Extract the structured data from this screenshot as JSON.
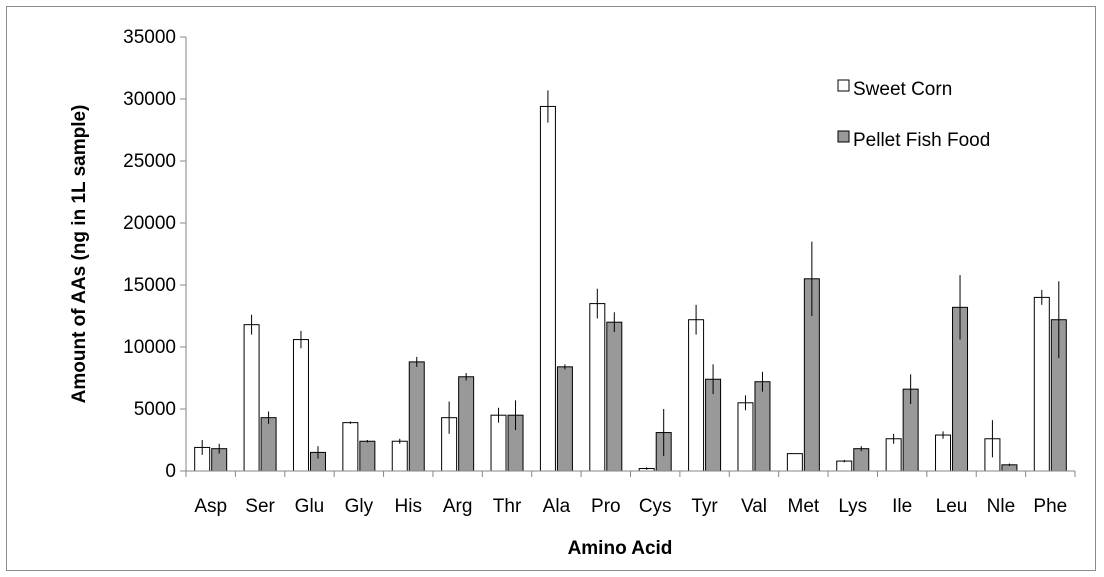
{
  "chart_data": {
    "type": "bar",
    "title": "",
    "xlabel": "Amino Acid",
    "ylabel": "Amount of AAs (ng in 1L sample)",
    "ylim": [
      0,
      35000
    ],
    "yticks": [
      0,
      5000,
      10000,
      15000,
      20000,
      25000,
      30000,
      35000
    ],
    "ytick_labels": [
      "0",
      "5000",
      "10000",
      "15000",
      "20000",
      "25000",
      "30000",
      "35000"
    ],
    "grid": false,
    "legend_position": "top-right",
    "error_bars": true,
    "categories": [
      "Asp",
      "Ser",
      "Glu",
      "Gly",
      "His",
      "Arg",
      "Thr",
      "Ala",
      "Pro",
      "Cys",
      "Tyr",
      "Val",
      "Met",
      "Lys",
      "Ile",
      "Leu",
      "Nle",
      "Phe"
    ],
    "series": [
      {
        "name": "Sweet Corn",
        "color": "#ffffff",
        "values": [
          1900,
          11800,
          10600,
          3900,
          2400,
          4300,
          4500,
          29400,
          13500,
          200,
          12200,
          5500,
          1400,
          800,
          2600,
          2900,
          2600,
          14000
        ],
        "errors": [
          600,
          800,
          700,
          100,
          200,
          1300,
          600,
          1300,
          1200,
          100,
          1200,
          600,
          0,
          100,
          400,
          300,
          1500,
          600
        ]
      },
      {
        "name": "Pellet Fish Food",
        "color": "#999999",
        "values": [
          1800,
          4300,
          1500,
          2400,
          8800,
          7600,
          4500,
          8400,
          12000,
          3100,
          7400,
          7200,
          15500,
          1800,
          6600,
          13200,
          500,
          12200
        ],
        "errors": [
          400,
          500,
          500,
          100,
          400,
          300,
          1200,
          200,
          800,
          1900,
          1200,
          800,
          3000,
          200,
          1200,
          2600,
          100,
          3100
        ]
      }
    ]
  }
}
